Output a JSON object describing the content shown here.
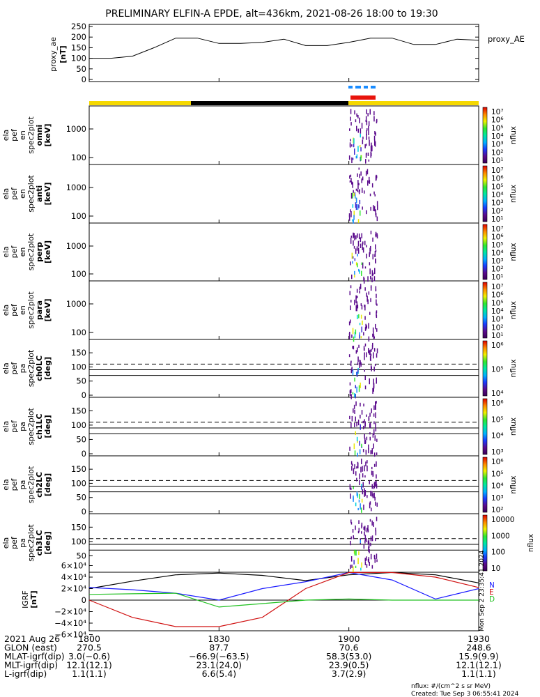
{
  "title": "PRELIMINARY ELFIN-A EPDE, alt=436km, 2021-08-26 18:00 to 19:30",
  "colors": {
    "yellow": "#f5d800",
    "black": "#000000",
    "red": "#e8140c",
    "blue": "#1a8cff",
    "green": "#2ecc2e",
    "purple": "#5a0a8c"
  },
  "chart_data": [
    {
      "type": "line",
      "name": "proxy_ae",
      "ylabel": [
        "proxy_ae",
        "[nT]"
      ],
      "legend": "proxy_AE",
      "yticks": [
        "250",
        "200",
        "150",
        "100",
        "50",
        "0"
      ],
      "ylim": [
        0,
        250
      ],
      "x_minutes": [
        0,
        5,
        10,
        15,
        20,
        25,
        30,
        35,
        40,
        45,
        50,
        55,
        60,
        65,
        70,
        75,
        80,
        85,
        90
      ],
      "values": [
        100,
        100,
        110,
        150,
        195,
        195,
        170,
        170,
        175,
        190,
        160,
        160,
        175,
        195,
        195,
        165,
        165,
        190,
        185
      ]
    },
    {
      "type": "heatmap",
      "name": "omni",
      "ylabel": [
        "ela",
        "pef",
        "en",
        "spec2plot",
        "omni",
        "[keV]"
      ],
      "yticks": [
        "1000",
        "100"
      ],
      "colorbar": {
        "label": "nflux",
        "ticks": [
          "10⁷",
          "10⁶",
          "10⁵",
          "10⁴",
          "10³",
          "10²",
          "10¹"
        ]
      }
    },
    {
      "type": "heatmap",
      "name": "anti",
      "ylabel": [
        "ela",
        "pef",
        "en",
        "spec2plot",
        "anti",
        "[keV]"
      ],
      "yticks": [
        "1000",
        "100"
      ],
      "colorbar": {
        "label": "nflux",
        "ticks": [
          "10⁷",
          "10⁶",
          "10⁵",
          "10⁴",
          "10³",
          "10²",
          "10¹"
        ]
      }
    },
    {
      "type": "heatmap",
      "name": "perp",
      "ylabel": [
        "ela",
        "pef",
        "en",
        "spec2plot",
        "perp",
        "[keV]"
      ],
      "yticks": [
        "1000",
        "100"
      ],
      "colorbar": {
        "label": "nflux",
        "ticks": [
          "10⁷",
          "10⁶",
          "10⁵",
          "10⁴",
          "10³",
          "10²",
          "10¹"
        ]
      }
    },
    {
      "type": "heatmap",
      "name": "para",
      "ylabel": [
        "ela",
        "pef",
        "en",
        "spec2plot",
        "para",
        "[keV]"
      ],
      "yticks": [
        "1000",
        "100"
      ],
      "colorbar": {
        "label": "nflux",
        "ticks": [
          "10⁷",
          "10⁶",
          "10⁵",
          "10⁴",
          "10³",
          "10²",
          "10¹"
        ]
      }
    },
    {
      "type": "heatmap",
      "name": "ch0LC",
      "ylabel": [
        "ela",
        "pef",
        "pa",
        "spec2plot",
        "ch0LC",
        "[deg]"
      ],
      "yticks": [
        "150",
        "100",
        "50",
        "0"
      ],
      "ylim": [
        0,
        180
      ],
      "lines": {
        "dashed": 110,
        "solid": [
          90,
          70
        ]
      },
      "colorbar": {
        "label": "nflux",
        "ticks": [
          "10⁶",
          "10⁵",
          "10⁴"
        ]
      }
    },
    {
      "type": "heatmap",
      "name": "ch1LC",
      "ylabel": [
        "ela",
        "pef",
        "pa",
        "spec2plot",
        "ch1LC",
        "[deg]"
      ],
      "yticks": [
        "150",
        "100",
        "50",
        "0"
      ],
      "ylim": [
        0,
        180
      ],
      "lines": {
        "dashed": 110,
        "solid": [
          90,
          70
        ]
      },
      "colorbar": {
        "label": "nflux",
        "ticks": [
          "10⁶",
          "10⁵",
          "10⁴",
          "10³"
        ]
      }
    },
    {
      "type": "heatmap",
      "name": "ch2LC",
      "ylabel": [
        "ela",
        "pef",
        "pa",
        "spec2plot",
        "ch2LC",
        "[deg]"
      ],
      "yticks": [
        "150",
        "100",
        "50",
        "0"
      ],
      "ylim": [
        0,
        180
      ],
      "lines": {
        "dashed": 110,
        "solid": [
          90,
          70
        ]
      },
      "colorbar": {
        "label": "nflux",
        "ticks": [
          "10⁶",
          "10⁵",
          "10⁴",
          "10³",
          "10²"
        ]
      }
    },
    {
      "type": "heatmap",
      "name": "ch3LC",
      "ylabel": [
        "ela",
        "pef",
        "pa",
        "spec2plot",
        "ch3LC",
        "[deg]"
      ],
      "yticks": [
        "150",
        "100",
        "50"
      ],
      "ylim": [
        0,
        180
      ],
      "lines": {
        "dashed": 110,
        "solid": [
          90,
          70
        ]
      },
      "colorbar": {
        "label": "nflux",
        "ticks": [
          "10000",
          "1000",
          "100",
          "10"
        ]
      }
    },
    {
      "type": "line",
      "name": "IGRF",
      "ylabel": [
        "IGRF",
        "[nT]"
      ],
      "yticks": [
        "6×10⁴",
        "4×10⁴",
        "2×10⁴",
        "0",
        "−2×10⁴",
        "−4×10⁴",
        "−6×10⁴"
      ],
      "ylim": [
        -60000,
        60000
      ],
      "legend": [
        "N",
        "E",
        "D"
      ],
      "x_minutes": [
        0,
        10,
        20,
        30,
        40,
        50,
        60,
        70,
        80,
        90
      ],
      "series": [
        {
          "color": "black",
          "values": [
            20000,
            33000,
            44000,
            47000,
            43000,
            34000,
            44000,
            48000,
            44000,
            30000
          ]
        },
        {
          "color": "blue",
          "values": [
            22000,
            18000,
            12000,
            0,
            20000,
            32000,
            48000,
            35000,
            2000,
            20000
          ]
        },
        {
          "color": "red",
          "values": [
            0,
            -30000,
            -46000,
            -46000,
            -30000,
            20000,
            48000,
            48000,
            40000,
            22000
          ]
        },
        {
          "color": "green",
          "values": [
            10000,
            11000,
            12000,
            -12000,
            -6000,
            0,
            2000,
            0,
            0,
            0
          ]
        }
      ]
    }
  ],
  "xaxis": {
    "ticks": [
      "1800",
      "1830",
      "1900",
      "1930"
    ]
  },
  "footer": {
    "rows": [
      {
        "label": "2021 Aug 26",
        "v": [
          "1800",
          "1830",
          "1900",
          "1930"
        ]
      },
      {
        "label": "GLON (east)",
        "v": [
          "270.5",
          "87.7",
          "70.6",
          "248.6"
        ]
      },
      {
        "label": "MLAT-igrf(dip)",
        "v": [
          "3.0(−0.6)",
          "−66.9(−63.5)",
          "58.3(53.0)",
          "15.9(9.9)"
        ]
      },
      {
        "label": "MLT-igrf(dip)",
        "v": [
          "12.1(12.1)",
          "23.1(24.0)",
          "23.9(0.5)",
          "12.1(12.1)"
        ]
      },
      {
        "label": "L-igrf(dip)",
        "v": [
          "1.1(1.1)",
          "6.6(5.4)",
          "3.7(2.9)",
          "1.1(1.1)"
        ]
      }
    ],
    "units_note": "nflux: #/(cm^2 s sr MeV)",
    "created": "Created: Tue Sep  3 06:55:41 2024",
    "side_stamp": "Mon Sep 2 23:35:41 2024"
  }
}
